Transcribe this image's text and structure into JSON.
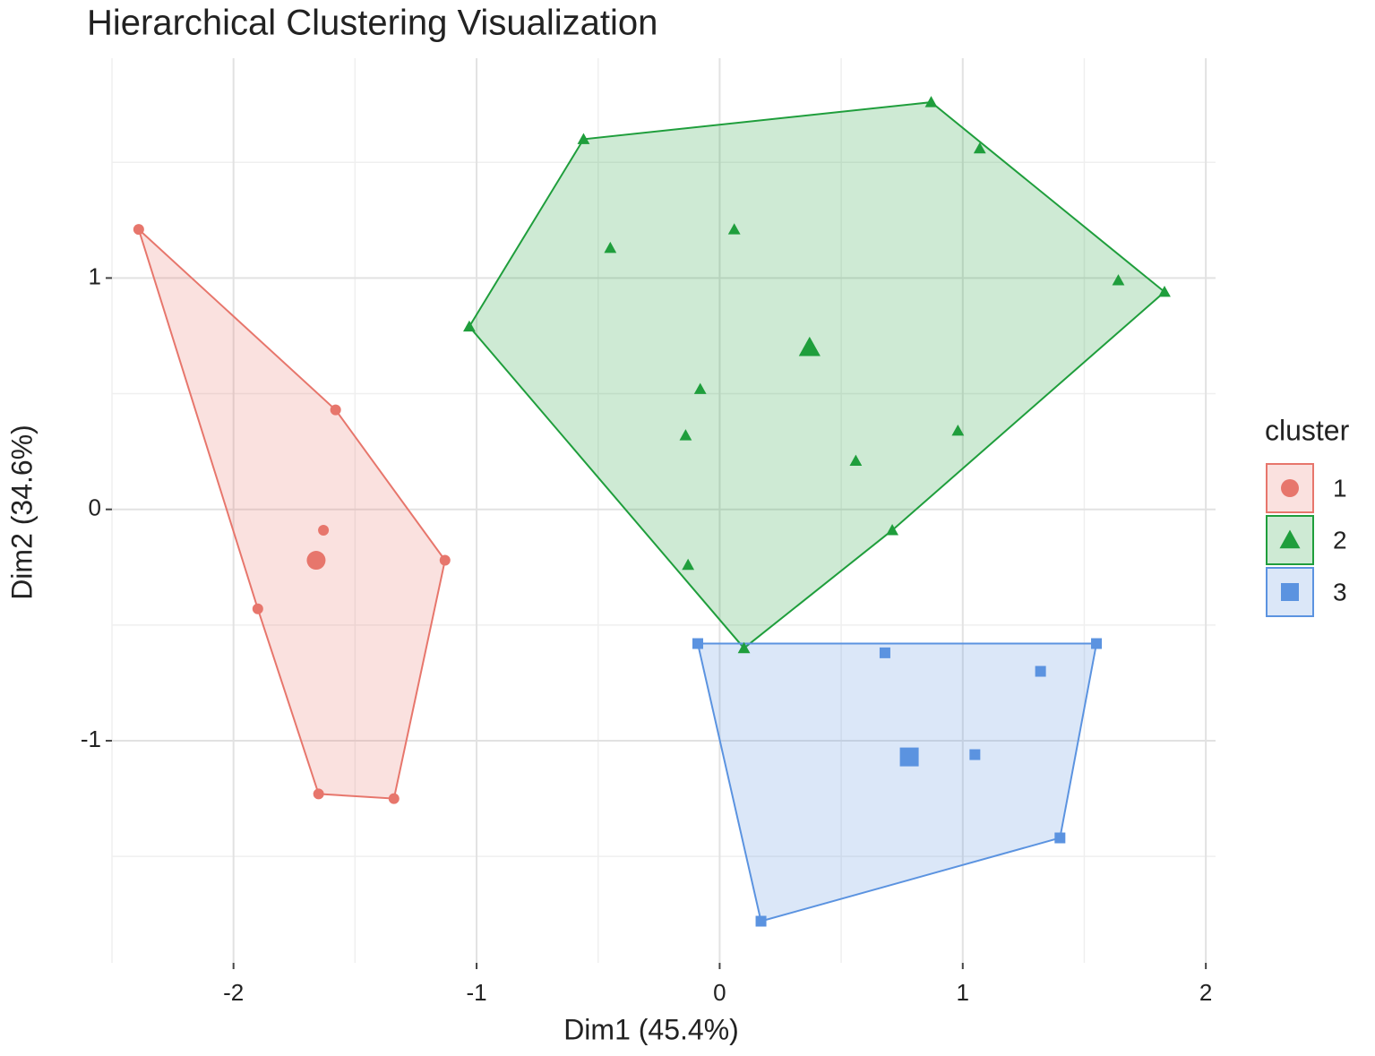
{
  "chart_data": {
    "type": "cluster",
    "title": "Hierarchical Clustering Visualization",
    "x_label": "Dim1 (45.4%)",
    "y_label": "Dim2 (34.6%)",
    "legend_title": "cluster",
    "legend_position": "right",
    "grid": true,
    "xlim": [
      -2.5,
      2.04
    ],
    "ylim": [
      -1.96,
      1.95
    ],
    "xticks": [
      -2,
      -1,
      0,
      1,
      2
    ],
    "yticks": [
      -1,
      0,
      1
    ],
    "x_minor_grid": [
      -2.5,
      -1.5,
      -0.5,
      0.5,
      1.5
    ],
    "y_minor_grid": [
      -1.5,
      -0.5,
      0.5,
      1.5
    ],
    "series": [
      {
        "name": "1",
        "color": "#E7766C",
        "shape": "circle",
        "x": [
          -2.39,
          -1.58,
          -1.13,
          -1.34,
          -1.65,
          -1.9,
          -1.63
        ],
        "y": [
          1.21,
          0.43,
          -0.22,
          -1.25,
          -1.23,
          -0.43,
          -0.09
        ],
        "center": [
          -1.66,
          -0.22
        ]
      },
      {
        "name": "2",
        "color": "#1F9E3C",
        "shape": "triangle",
        "x": [
          -0.56,
          0.87,
          1.07,
          1.83,
          1.64,
          -1.03,
          -0.45,
          0.06,
          -0.08,
          -0.14,
          0.56,
          0.98,
          0.71,
          -0.13,
          0.1
        ],
        "y": [
          1.6,
          1.76,
          1.56,
          0.94,
          0.99,
          0.79,
          1.13,
          1.21,
          0.52,
          0.32,
          0.21,
          0.34,
          -0.09,
          -0.24,
          -0.6
        ],
        "center": [
          0.37,
          0.7
        ]
      },
      {
        "name": "3",
        "color": "#5B93E0",
        "shape": "square",
        "x": [
          -0.09,
          1.55,
          0.68,
          1.32,
          1.05,
          1.4,
          0.17
        ],
        "y": [
          -0.58,
          -0.58,
          -0.62,
          -0.7,
          -1.06,
          -1.42,
          -1.78
        ],
        "center": [
          0.78,
          -1.07
        ]
      }
    ]
  }
}
